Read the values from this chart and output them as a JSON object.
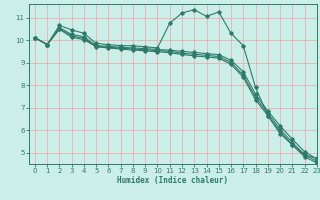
{
  "xlabel": "Humidex (Indice chaleur)",
  "background_color": "#cceee8",
  "line_color": "#2d7a6a",
  "grid_color": "#e8b0b0",
  "xlim": [
    -0.5,
    23
  ],
  "ylim": [
    4.5,
    11.6
  ],
  "xticks": [
    0,
    1,
    2,
    3,
    4,
    5,
    6,
    7,
    8,
    9,
    10,
    11,
    12,
    13,
    14,
    15,
    16,
    17,
    18,
    19,
    20,
    21,
    22,
    23
  ],
  "yticks": [
    5,
    6,
    7,
    8,
    9,
    10,
    11
  ],
  "series1_x": [
    0,
    1,
    2,
    3,
    4,
    5,
    6,
    7,
    8,
    9,
    10,
    11,
    12,
    13,
    14,
    15,
    16,
    17,
    18,
    19,
    20,
    21,
    22,
    23
  ],
  "series1_y": [
    10.1,
    9.8,
    10.65,
    10.45,
    10.3,
    9.85,
    9.8,
    9.75,
    9.75,
    9.7,
    9.65,
    10.75,
    11.2,
    11.35,
    11.05,
    11.25,
    10.3,
    9.75,
    7.9,
    6.65,
    5.85,
    5.35,
    4.9,
    4.75
  ],
  "series2_x": [
    0,
    1,
    2,
    3,
    4,
    5,
    6,
    7,
    8,
    9,
    10,
    11,
    12,
    13,
    14,
    15,
    16,
    17,
    18,
    19,
    20,
    21,
    22,
    23
  ],
  "series2_y": [
    10.1,
    9.8,
    10.55,
    10.25,
    10.15,
    9.75,
    9.72,
    9.68,
    9.65,
    9.62,
    9.58,
    9.55,
    9.5,
    9.45,
    9.4,
    9.35,
    9.1,
    8.6,
    7.6,
    6.85,
    6.2,
    5.6,
    5.05,
    4.72
  ],
  "series3_x": [
    0,
    1,
    2,
    3,
    4,
    5,
    6,
    7,
    8,
    9,
    10,
    11,
    12,
    13,
    14,
    15,
    16,
    17,
    18,
    19,
    20,
    21,
    22,
    23
  ],
  "series3_y": [
    10.1,
    9.8,
    10.5,
    10.18,
    10.08,
    9.72,
    9.68,
    9.64,
    9.6,
    9.57,
    9.53,
    9.5,
    9.42,
    9.37,
    9.32,
    9.27,
    9.0,
    8.45,
    7.45,
    6.75,
    6.05,
    5.45,
    4.92,
    4.62
  ],
  "series4_x": [
    0,
    1,
    2,
    3,
    4,
    5,
    6,
    7,
    8,
    9,
    10,
    11,
    12,
    13,
    14,
    15,
    16,
    17,
    18,
    19,
    20,
    21,
    22,
    23
  ],
  "series4_y": [
    10.1,
    9.8,
    10.48,
    10.12,
    10.02,
    9.7,
    9.65,
    9.6,
    9.56,
    9.52,
    9.48,
    9.44,
    9.36,
    9.3,
    9.25,
    9.2,
    8.92,
    8.35,
    7.35,
    6.65,
    5.95,
    5.35,
    4.82,
    4.55
  ]
}
